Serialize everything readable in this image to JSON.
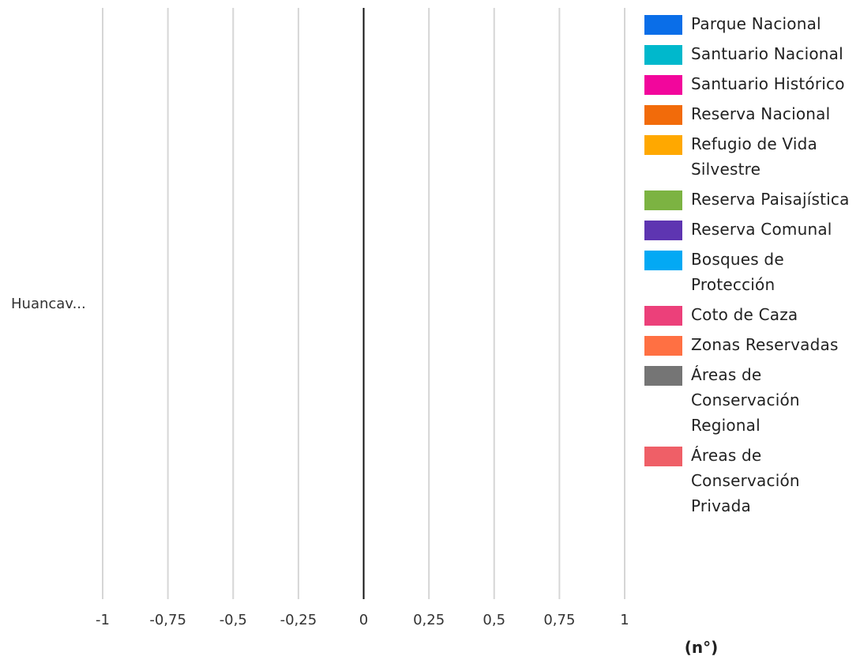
{
  "chart_data": {
    "type": "bar",
    "orientation": "horizontal",
    "categories": [
      "Huancav..."
    ],
    "series": [
      {
        "name": "Parque Nacional",
        "color": "#0a6ee8",
        "values": [
          0
        ]
      },
      {
        "name": "Santuario Nacional",
        "color": "#00b8cc",
        "values": [
          0
        ]
      },
      {
        "name": "Santuario Histórico",
        "color": "#f2069c",
        "values": [
          0
        ]
      },
      {
        "name": "Reserva Nacional",
        "color": "#f26b0a",
        "values": [
          0
        ]
      },
      {
        "name": "Refugio de Vida Silvestre",
        "color": "#ffa800",
        "values": [
          0
        ]
      },
      {
        "name": "Reserva Paisajística",
        "color": "#7cb342",
        "values": [
          0
        ]
      },
      {
        "name": "Reserva Comunal",
        "color": "#5e35b1",
        "values": [
          0
        ]
      },
      {
        "name": "Bosques de Protección",
        "color": "#03a9f4",
        "values": [
          0
        ]
      },
      {
        "name": "Coto de Caza",
        "color": "#ec407a",
        "values": [
          0
        ]
      },
      {
        "name": "Zonas Reservadas",
        "color": "#ff7043",
        "values": [
          0
        ]
      },
      {
        "name": "Áreas de Conservación Regional",
        "color": "#757575",
        "values": [
          0
        ]
      },
      {
        "name": "Áreas de Conservación Privada",
        "color": "#ef5f67",
        "values": [
          0
        ]
      }
    ],
    "x_ticks": [
      "-1",
      "-0,75",
      "-0,5",
      "-0,25",
      "0",
      "0,25",
      "0,5",
      "0,75",
      "1"
    ],
    "xlim": [
      -1,
      1
    ],
    "xlabel": "(n°)",
    "grid": true,
    "legend_position": "right"
  }
}
